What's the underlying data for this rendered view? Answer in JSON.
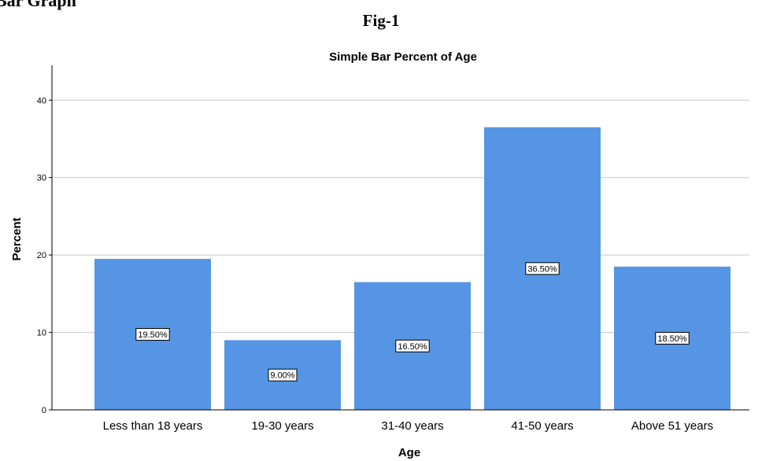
{
  "document": {
    "heading": "Bar Graph",
    "figure_label": "Fig-1"
  },
  "colors": {
    "bar": "#5595e4",
    "grid": "#c8c8c8",
    "axis": "#000000",
    "label_box_fill": "#ffffff",
    "label_box_stroke": "#000000"
  },
  "chart_data": {
    "type": "bar",
    "title": "Simple Bar Percent of Age",
    "xlabel": "Age",
    "ylabel": "Percent",
    "categories": [
      "Less than 18 years",
      "19-30 years",
      "31-40 years",
      "41-50 years",
      "Above 51 years"
    ],
    "values": [
      19.5,
      9.0,
      16.5,
      36.5,
      18.5
    ],
    "data_labels": [
      "19.50%",
      "9.00%",
      "16.50%",
      "36.50%",
      "18.50%"
    ],
    "yticks": [
      0,
      10,
      20,
      30,
      40
    ],
    "ylim": [
      0,
      44.5
    ],
    "grid": true,
    "legend": "none"
  }
}
